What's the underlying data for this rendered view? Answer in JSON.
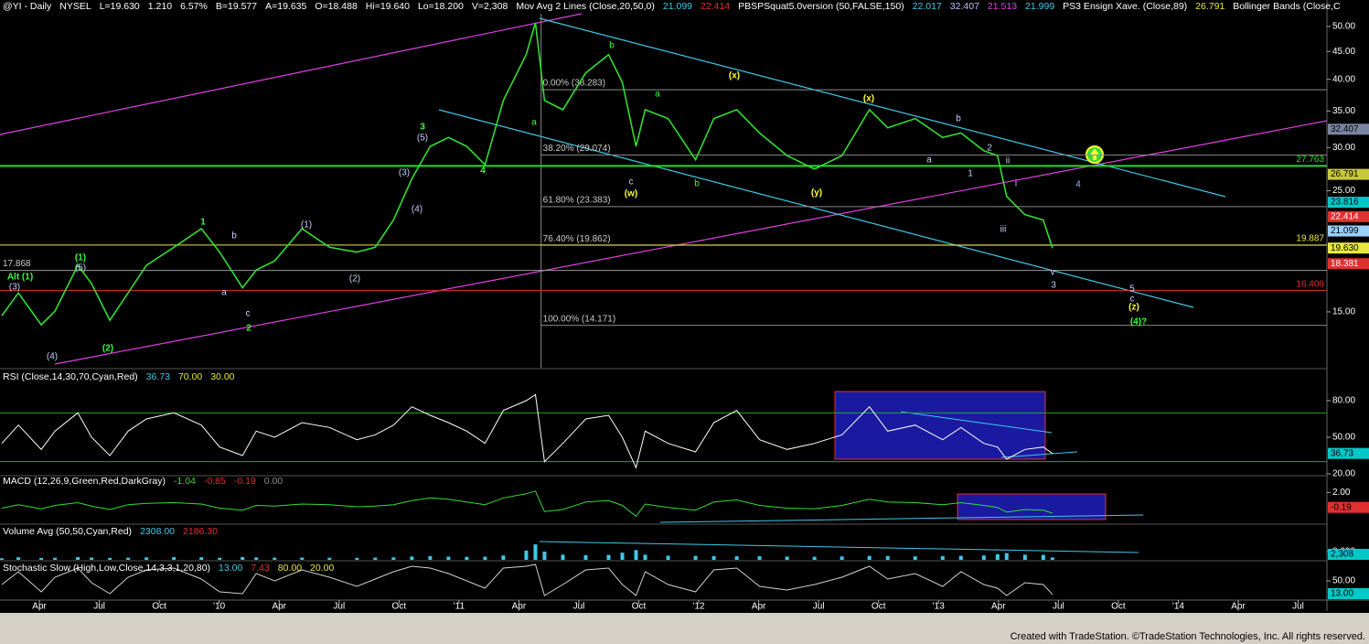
{
  "chart_data": [
    {
      "type": "line",
      "log_scale": true,
      "color": "#33dd33",
      "header": [
        {
          "text": "@YI - Daily",
          "color": "#ffffff"
        },
        {
          "text": "NYSEL",
          "color": "#ffffff"
        },
        {
          "text": "L=19.630",
          "color": "#ffffff"
        },
        {
          "text": "1.210",
          "color": "#ffffff"
        },
        {
          "text": "6.57%",
          "color": "#ffffff"
        },
        {
          "text": "B=19.577",
          "color": "#ffffff"
        },
        {
          "text": "A=19.635",
          "color": "#ffffff"
        },
        {
          "text": "O=18.488",
          "color": "#ffffff"
        },
        {
          "text": "Hi=19.640",
          "color": "#ffffff"
        },
        {
          "text": "Lo=18.200",
          "color": "#ffffff"
        },
        {
          "text": "V=2,308",
          "color": "#ffffff"
        },
        {
          "text": "Mov Avg 2 Lines (Close,20,50,0)",
          "color": "#ffffff"
        },
        {
          "text": "21.099",
          "color": "#40c8e8"
        },
        {
          "text": "22.414",
          "color": "#e03030"
        },
        {
          "text": "PBSPSquat5.0version (50,FALSE,150)",
          "color": "#ffffff"
        },
        {
          "text": "22.017",
          "color": "#40c8e8"
        },
        {
          "text": "32.407",
          "color": "#c0c0ff"
        },
        {
          "text": "21.513",
          "color": "#e040e0"
        },
        {
          "text": "21.999",
          "color": "#40c8e8"
        },
        {
          "text": "PS3 Ensign Xave. (Close,89)",
          "color": "#ffffff"
        },
        {
          "text": "26.791",
          "color": "#e8e840"
        },
        {
          "text": "Bollinger Bands (Close,C",
          "color": "#ffffff"
        }
      ],
      "x": [
        0.374,
        0.649,
        1.031,
        1.26,
        1.641,
        1.87,
        2.176,
        2.481,
        2.786,
        3.244,
        3.702,
        4.008,
        4.389,
        4.618,
        4.924,
        5.382,
        5.84,
        6.298,
        6.603,
        6.908,
        7.214,
        7.519,
        7.824,
        8.13,
        8.435,
        8.74,
        9.122,
        9.275,
        9.427,
        9.733,
        10.115,
        10.496,
        10.725,
        10.954,
        11.107,
        11.489,
        11.947,
        12.252,
        12.634,
        13.015,
        13.473,
        13.931,
        14.389,
        14.847,
        15.153,
        15.611,
        16.069,
        16.374,
        16.756,
        16.985,
        17.137,
        17.443,
        17.748,
        17.901
      ],
      "values": [
        14.76,
        16.25,
        14.2,
        15.05,
        18.25,
        16.9,
        14.48,
        16.25,
        18.25,
        19.7,
        21.3,
        19.3,
        16.6,
        17.9,
        18.6,
        21.3,
        19.7,
        19.3,
        19.7,
        22.1,
        26.3,
        30.15,
        31.3,
        30.15,
        27.9,
        36.6,
        44.4,
        50.8,
        36.6,
        35.2,
        41.1,
        44.4,
        39.5,
        30.15,
        35.2,
        33.9,
        28.5,
        33.9,
        35.2,
        31.9,
        29.0,
        27.4,
        29.0,
        35.2,
        32.6,
        33.9,
        31.3,
        31.9,
        29.6,
        29.0,
        24.4,
        22.6,
        22.1,
        19.63
      ],
      "xlim": [
        0.343,
        22.48
      ],
      "xticks": [
        {
          "value": 1,
          "label": "Apr"
        },
        {
          "value": 2,
          "label": "Jul"
        },
        {
          "value": 3,
          "label": "Oct"
        },
        {
          "value": 4,
          "label": "'10"
        },
        {
          "value": 5,
          "label": "Apr"
        },
        {
          "value": 6,
          "label": "Jul"
        },
        {
          "value": 7,
          "label": "Oct"
        },
        {
          "value": 8,
          "label": "'11"
        },
        {
          "value": 9,
          "label": "Apr"
        },
        {
          "value": 10,
          "label": "Jul"
        },
        {
          "value": 11,
          "label": "Oct"
        },
        {
          "value": 12,
          "label": "'12"
        },
        {
          "value": 13,
          "label": "Apr"
        },
        {
          "value": 14,
          "label": "Jul"
        },
        {
          "value": 15,
          "label": "Oct"
        },
        {
          "value": 16,
          "label": "'13"
        },
        {
          "value": 17,
          "label": "Apr"
        },
        {
          "value": 18,
          "label": "Jul"
        },
        {
          "value": 19,
          "label": "Oct"
        },
        {
          "value": 20,
          "label": "'14"
        },
        {
          "value": 21,
          "label": "Apr"
        },
        {
          "value": 22,
          "label": "Jul"
        }
      ],
      "ylim": [
        11.85,
        55.9
      ],
      "yticks": [
        {
          "value": 15,
          "label": "15.00"
        },
        {
          "value": 25,
          "label": "25.00"
        },
        {
          "value": 30,
          "label": "30.00"
        },
        {
          "value": 35,
          "label": "35.00"
        },
        {
          "value": 40,
          "label": "40.00"
        },
        {
          "value": 45,
          "label": "45.00"
        },
        {
          "value": 50,
          "label": "50.00"
        }
      ],
      "fib_x": 9.37,
      "fib_color": "#8a8a8a",
      "fib_levels": [
        {
          "value": 38.283,
          "label": "0.00% (38.283)"
        },
        {
          "value": 29.074,
          "label": "38.20% (29.074)"
        },
        {
          "value": 23.383,
          "label": "61.80% (23.383)"
        },
        {
          "value": 19.862,
          "label": "76.40% (19.862)"
        },
        {
          "value": 14.171,
          "label": "100.00% (14.171)"
        }
      ],
      "levels": [
        {
          "value": 27.763,
          "color": "#22dd22",
          "label_side": "right"
        },
        {
          "value": 19.887,
          "color": "#e8e840",
          "label_side": "right"
        },
        {
          "value": 17.868,
          "color": "#9a9a9a",
          "label_side": "left"
        },
        {
          "value": 16.409,
          "color": "#e03030",
          "label_side": "right"
        }
      ],
      "markers": [
        {
          "value": 32.407,
          "color": "#7a86a0"
        },
        {
          "value": 26.791,
          "color": "#c8c83c"
        },
        {
          "value": 23.816,
          "color": "#00c8c8"
        },
        {
          "value": 22.414,
          "color": "#e03030"
        },
        {
          "value": 21.099,
          "color": "#9ad0ff"
        },
        {
          "value": 19.63,
          "label": "19.630",
          "color": "#e8e840"
        },
        {
          "value": 18.381,
          "color": "#e03030"
        }
      ],
      "annotations": [
        {
          "text": "1",
          "color": "#33ff33"
        },
        {
          "text": "(1)",
          "color": "#33ff33"
        },
        {
          "text": "Alt (1)",
          "color": "#33ff33"
        },
        {
          "text": "(2)",
          "color": "#33ff33"
        },
        {
          "text": "2",
          "color": "#33ff33"
        },
        {
          "text": "3",
          "color": "#33ff33"
        },
        {
          "text": "4",
          "color": "#33ff33"
        },
        {
          "text": "(5)",
          "color": "#c8d0ff"
        },
        {
          "text": "(3)",
          "color": "#c8d0ff"
        },
        {
          "text": "(4)",
          "color": "#c8d0ff"
        },
        {
          "text": "a",
          "color": "#c8d0ff"
        },
        {
          "text": "b",
          "color": "#c8d0ff"
        },
        {
          "text": "c",
          "color": "#c8d0ff"
        },
        {
          "text": "(1)",
          "color": "#c8d0ff"
        },
        {
          "text": "(2)",
          "color": "#c8d0ff"
        },
        {
          "text": "(3)",
          "color": "#c8d0ff"
        },
        {
          "text": "(4)",
          "color": "#c8d0ff"
        },
        {
          "text": "(5)",
          "color": "#c8d0ff"
        },
        {
          "text": "a",
          "color": "#33ff33"
        },
        {
          "text": "b",
          "color": "#33ff33"
        },
        {
          "text": "a",
          "color": "#33ff33"
        },
        {
          "text": "c",
          "color": "#c8d0ff"
        },
        {
          "text": "b",
          "color": "#33ff33"
        },
        {
          "text": "a",
          "color": "#c8d0ff"
        },
        {
          "text": "b",
          "color": "#c8d0ff"
        },
        {
          "text": "1",
          "color": "#c8d0ff"
        },
        {
          "text": "2",
          "color": "#c8d0ff"
        },
        {
          "text": "ii",
          "color": "#c8d0ff"
        },
        {
          "text": "i",
          "color": "#c8d0ff"
        },
        {
          "text": "iii",
          "color": "#c8d0ff"
        },
        {
          "text": "v",
          "color": "#c8d0ff"
        },
        {
          "text": "3",
          "color": "#c8d0ff"
        },
        {
          "text": "4",
          "color": "#9ab8ff"
        },
        {
          "text": "5",
          "color": "#c8d0ff"
        },
        {
          "text": "c",
          "color": "#c8d0ff"
        },
        {
          "text": "(w)",
          "color": "#ffff33"
        },
        {
          "text": "(x)",
          "color": "#ffff33"
        },
        {
          "text": "(y)",
          "color": "#ffff33"
        },
        {
          "text": "(x)",
          "color": "#ffff33"
        },
        {
          "text": "(z)",
          "color": "#ffff33"
        },
        {
          "text": "(4)?",
          "color": "#33ff33"
        }
      ]
    },
    {
      "type": "line",
      "color": "#ffffff",
      "header": [
        {
          "text": "RSI (Close,14,30,70,Cyan,Red)",
          "color": "#ffffff"
        },
        {
          "text": "36.73",
          "color": "#40c8e8"
        },
        {
          "text": "70.00",
          "color": "#e8e840"
        },
        {
          "text": "30.00",
          "color": "#e8e840"
        }
      ],
      "values": [
        45,
        60,
        40,
        55,
        70,
        50,
        35,
        55,
        65,
        70,
        60,
        42,
        35,
        55,
        50,
        62,
        58,
        48,
        52,
        60,
        75,
        68,
        62,
        55,
        45,
        72,
        80,
        85,
        30,
        45,
        65,
        68,
        50,
        25,
        55,
        45,
        38,
        62,
        72,
        48,
        40,
        45,
        52,
        75,
        55,
        60,
        48,
        58,
        45,
        42,
        32,
        40,
        42,
        36.73
      ],
      "ylim": [
        18.5,
        104.75
      ],
      "yticks": [
        {
          "value": 20,
          "label": "20.00"
        },
        {
          "value": 50,
          "label": "50.00"
        },
        {
          "value": 80,
          "label": "80.00"
        }
      ],
      "ref_lines": [
        70,
        30
      ],
      "ref_color": "#22aa22",
      "current_label": {
        "value": 36.73,
        "color": "#00c8c8"
      }
    },
    {
      "type": "line",
      "color": "#33dd33",
      "header": [
        {
          "text": "MACD (12,26,9,Green,Red,DarkGray)",
          "color": "#ffffff"
        },
        {
          "text": "-1.04",
          "color": "#33dd33"
        },
        {
          "text": "-0.85",
          "color": "#e03030"
        },
        {
          "text": "-0.19",
          "color": "#e03030"
        },
        {
          "text": "0.00",
          "color": "#8a8a8a"
        }
      ],
      "values": [
        -0.3,
        0.2,
        -0.4,
        0.1,
        0.5,
        0,
        -0.5,
        0.2,
        0.4,
        0.5,
        0.3,
        -0.3,
        -0.6,
        0.1,
        0,
        0.3,
        0.2,
        -0.1,
        0,
        0.2,
        0.8,
        1.2,
        1.0,
        0.6,
        0.2,
        1.2,
        1.8,
        2.2,
        -0.8,
        -0.5,
        0.6,
        0.8,
        0.1,
        -1.5,
        0.3,
        -0.2,
        -0.6,
        0.6,
        0.9,
        0.1,
        -0.3,
        -0.4,
        0.1,
        1.0,
        0.6,
        0.5,
        0.2,
        0.5,
        0.1,
        -0.2,
        -0.9,
        -0.5,
        -0.6,
        -1.04
      ],
      "ylim": [
        -2.25,
        4.19
      ],
      "yticks": [
        {
          "value": 2,
          "label": "2.00"
        }
      ],
      "current_label": {
        "value": -0.19,
        "color": "#e03030"
      }
    },
    {
      "type": "bar",
      "color": "#40c8e8",
      "header": [
        {
          "text": "Volume Avg (50,50,Cyan,Red)",
          "color": "#ffffff"
        },
        {
          "text": "2308.00",
          "color": "#40c8e8"
        },
        {
          "text": "2186.30",
          "color": "#e03030"
        }
      ],
      "values": [
        1500,
        2500,
        1800,
        2000,
        2600,
        2200,
        1900,
        2100,
        2400,
        2600,
        2500,
        2000,
        2700,
        2300,
        2100,
        2200,
        2000,
        1900,
        2100,
        2400,
        3200,
        3500,
        3100,
        2900,
        3000,
        4200,
        9000,
        15000,
        8000,
        5000,
        4500,
        4800,
        7000,
        9500,
        5000,
        4000,
        3800,
        3600,
        3400,
        3500,
        3200,
        3000,
        3300,
        3800,
        3600,
        3400,
        3500,
        3900,
        4200,
        5500,
        6500,
        5000,
        4800,
        2308
      ],
      "ylim": [
        0,
        32000
      ],
      "yticks": [
        {
          "value": 8000,
          "label": "8,000"
        }
      ],
      "current_label": {
        "value": 2308,
        "label": "2,308",
        "color": "#00c8c8"
      }
    },
    {
      "type": "line",
      "color": "#d0d0d0",
      "header": [
        {
          "text": "Stochastic Slow (High,Low,Close,14,3,3,1,20,80)",
          "color": "#ffffff"
        },
        {
          "text": "13.00",
          "color": "#40c8e8"
        },
        {
          "text": "7.43",
          "color": "#e03030"
        },
        {
          "text": "80.00",
          "color": "#e8e840"
        },
        {
          "text": "20.00",
          "color": "#e8e840"
        }
      ],
      "values": [
        40,
        75,
        20,
        60,
        85,
        45,
        15,
        60,
        80,
        85,
        55,
        20,
        15,
        70,
        50,
        80,
        60,
        35,
        55,
        75,
        90,
        85,
        70,
        50,
        30,
        85,
        90,
        95,
        10,
        40,
        80,
        85,
        40,
        10,
        75,
        40,
        20,
        80,
        85,
        35,
        25,
        40,
        60,
        90,
        55,
        70,
        35,
        75,
        40,
        30,
        10,
        45,
        40,
        13
      ],
      "ylim": [
        0,
        100
      ],
      "yticks": [
        {
          "value": 50,
          "label": "50.00"
        }
      ],
      "current_label": {
        "value": 13,
        "label": "13.00",
        "color": "#00c8c8"
      }
    }
  ],
  "footer": "Created with TradeStation. ©TradeStation Technologies, Inc. All rights reserved."
}
